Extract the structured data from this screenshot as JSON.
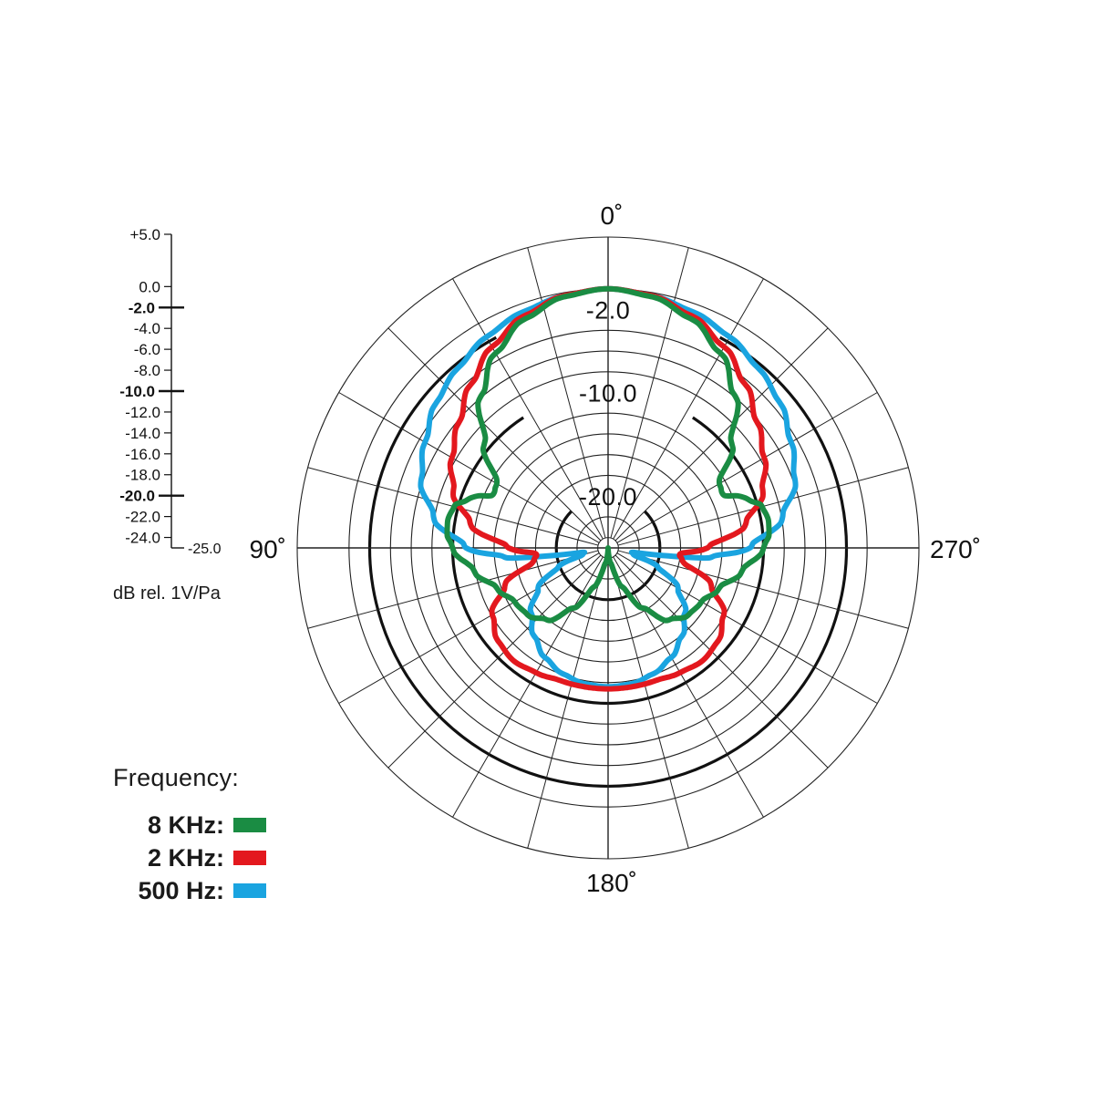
{
  "chart_data": {
    "type": "polar",
    "angle_labels": [
      {
        "angle": 0,
        "text": "0˚"
      },
      {
        "angle": 90,
        "text": "90˚"
      },
      {
        "angle": 180,
        "text": "180˚"
      },
      {
        "angle": 270,
        "text": "270˚"
      }
    ],
    "angle_direction": "counterclockwise from top (90 on left, 270 on right)",
    "radial_range_db": [
      -25,
      5
    ],
    "ring_labels": [
      "-2.0",
      "-10.0",
      "-20.0"
    ],
    "scale": {
      "ticks": [
        "+5.0",
        "0.0",
        "-2.0",
        "-4.0",
        "-6.0",
        "-8.0",
        "-10.0",
        "-12.0",
        "-14.0",
        "-16.0",
        "-18.0",
        "-20.0",
        "-22.0",
        "-24.0",
        "-25.0"
      ],
      "bold_ticks": [
        "-2.0",
        "-10.0",
        "-20.0"
      ],
      "unit": "dB rel. 1V/Pa"
    },
    "series": [
      {
        "name": "8 KHz",
        "color": "#1a8c43",
        "angles": [
          0,
          10,
          20,
          30,
          40,
          50,
          60,
          65,
          70,
          75,
          80,
          85,
          90,
          100,
          110,
          120,
          130,
          140,
          150,
          160,
          170,
          180
        ],
        "values_db": [
          0.0,
          -0.4,
          -1.5,
          -3.3,
          -5.9,
          -9.4,
          -12.6,
          -12.8,
          -10.9,
          -9.6,
          -9.3,
          -9.4,
          -10.0,
          -11.9,
          -13.6,
          -14.6,
          -14.9,
          -15.9,
          -18.3,
          -21.0,
          -23.5,
          -25.0
        ]
      },
      {
        "name": "2 KHz",
        "color": "#e3181e",
        "angles": [
          0,
          10,
          20,
          30,
          40,
          50,
          60,
          70,
          80,
          90,
          95,
          100,
          110,
          120,
          130,
          140,
          150,
          160,
          170,
          180
        ],
        "values_db": [
          0.0,
          -0.3,
          -1.2,
          -2.6,
          -4.4,
          -6.2,
          -7.6,
          -9.1,
          -11.5,
          -15.4,
          -18.1,
          -17.7,
          -14.4,
          -12.1,
          -11.1,
          -10.8,
          -11.1,
          -11.4,
          -11.4,
          -11.4
        ]
      },
      {
        "name": "500 Hz",
        "color": "#1aa4e0",
        "angles": [
          0,
          10,
          20,
          30,
          40,
          50,
          60,
          70,
          80,
          90,
          95,
          100,
          105,
          110,
          120,
          130,
          140,
          150,
          160,
          170,
          180
        ],
        "values_db": [
          0.0,
          -0.3,
          -0.8,
          -1.5,
          -2.4,
          -3.3,
          -4.6,
          -5.8,
          -7.9,
          -11.3,
          -14.9,
          -22.5,
          -22.5,
          -20.0,
          -17.2,
          -15.3,
          -13.9,
          -12.8,
          -12.1,
          -11.7,
          -11.6
        ]
      }
    ]
  },
  "legend": {
    "title": "Frequency:",
    "items": [
      {
        "label": "8 KHz:",
        "color": "#1a8c43"
      },
      {
        "label": "2 KHz:",
        "color": "#e3181e"
      },
      {
        "label": "500 Hz:",
        "color": "#1aa4e0"
      }
    ]
  }
}
